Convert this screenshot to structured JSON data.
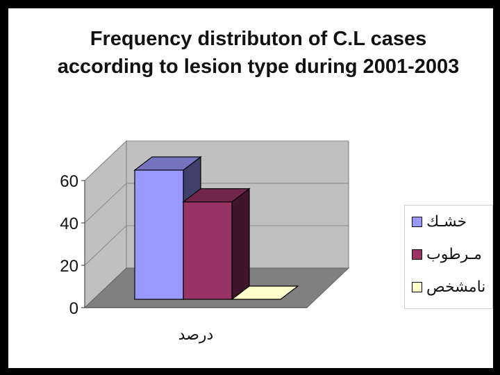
{
  "chart_data": {
    "type": "bar",
    "title": "Frequency distributon of C.L cases according to lesion type during 2001-2003",
    "categories": [
      "درصد"
    ],
    "series": [
      {
        "name": "خشـك",
        "values": [
          61
        ],
        "color": "#9999ff"
      },
      {
        "name": "مـرطوب",
        "values": [
          46
        ],
        "color": "#993366"
      },
      {
        "name": "نامشخص",
        "values": [
          0
        ],
        "color": "#ffffcc"
      }
    ],
    "yticks": [
      0,
      20,
      40,
      60
    ],
    "ylim": [
      0,
      60
    ],
    "grid": true,
    "legend": "right"
  },
  "colors": {
    "wall": "#c0c0c0",
    "floor": "#808080",
    "background": "#000000"
  }
}
